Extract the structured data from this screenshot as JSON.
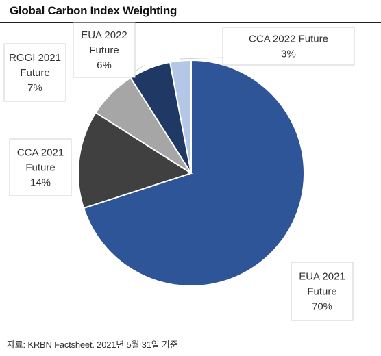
{
  "chart_data": {
    "type": "pie",
    "title": "Global Carbon Index Weighting",
    "slices": [
      {
        "label": [
          "EUA 2021",
          "Future",
          "70%"
        ],
        "value": 70,
        "color": "#2e5597"
      },
      {
        "label": [
          "CCA 2021",
          "Future",
          "14%"
        ],
        "value": 14,
        "color": "#404040"
      },
      {
        "label": [
          "RGGI 2021",
          "Future",
          "7%"
        ],
        "value": 7,
        "color": "#a6a6a6"
      },
      {
        "label": [
          "EUA 2022",
          "Future",
          "6%"
        ],
        "value": 6,
        "color": "#1f3864"
      },
      {
        "label": [
          "CCA 2022 Future",
          "3%"
        ],
        "value": 3,
        "color": "#b4c7e7"
      }
    ],
    "start_angle_deg": 90,
    "direction": "clockwise"
  },
  "source": "자료: KRBN Factsheet. 2021년 5월 31일 기준"
}
